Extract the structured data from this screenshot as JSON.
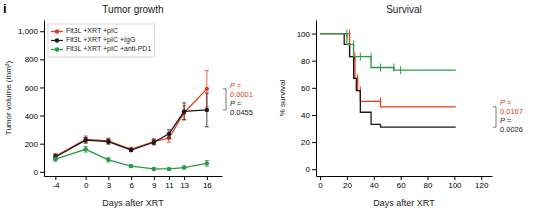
{
  "chart_data": [
    {
      "type": "line",
      "title": "Tumor growth",
      "panel_label": "i",
      "x_label": "Days after XRT",
      "y_label": "Tumor volume (mm³)",
      "x": [
        -4,
        0,
        3,
        6,
        9,
        11,
        13,
        16
      ],
      "series": [
        {
          "name": "Flt3L +XRT +pIC",
          "color": "#e8381a",
          "values": [
            110,
            230,
            220,
            160,
            215,
            240,
            420,
            590
          ],
          "errors": [
            20,
            25,
            20,
            15,
            20,
            30,
            50,
            130
          ]
        },
        {
          "name": "Flt3L +XRT +pIC +IgG",
          "color": "#1a1a1a",
          "values": [
            105,
            225,
            215,
            155,
            210,
            270,
            430,
            440
          ],
          "errors": [
            18,
            20,
            18,
            12,
            18,
            28,
            60,
            120
          ]
        },
        {
          "name": "Flt3L +XRT +pIC +anti-PD1",
          "color": "#2a9a4a",
          "values": [
            90,
            160,
            85,
            40,
            20,
            20,
            30,
            60
          ],
          "errors": [
            15,
            20,
            15,
            10,
            8,
            8,
            10,
            20
          ]
        }
      ],
      "xlim": [
        -5.5,
        18
      ],
      "xticks": [
        -4,
        0,
        3,
        6,
        9,
        11,
        13,
        16
      ],
      "ylim": [
        -30,
        1080
      ],
      "yticks": [
        0,
        200,
        400,
        600,
        800,
        {
          "value": 1000,
          "label": "1,000"
        }
      ],
      "grid": false,
      "legend": "upper left",
      "marker": "circle",
      "annotations": [
        {
          "text": "P =",
          "color": "#e8381a"
        },
        {
          "text": "0.0001",
          "color": "#e8381a"
        },
        {
          "text": "P =",
          "color": "#1a1a1a"
        },
        {
          "text": "0.0455",
          "color": "#1a1a1a"
        }
      ]
    },
    {
      "type": "step",
      "title": "Survival",
      "x_label": "Days after XRT",
      "y_label": "% survival",
      "series": [
        {
          "color": "#e8381a",
          "x": [
            0,
            22,
            22,
            26,
            26,
            28,
            28,
            30,
            30,
            45,
            45,
            101
          ],
          "values": [
            100,
            100,
            83,
            83,
            67,
            67,
            58,
            58,
            50,
            50,
            46,
            46
          ],
          "censor": [
            22,
            26,
            28,
            30,
            45
          ]
        },
        {
          "color": "#1a1a1a",
          "x": [
            0,
            18,
            18,
            22,
            22,
            25,
            25,
            27,
            27,
            30,
            30,
            38,
            38,
            45,
            45,
            101
          ],
          "values": [
            100,
            100,
            92,
            92,
            83,
            83,
            67,
            67,
            58,
            58,
            42,
            42,
            33,
            33,
            31,
            31
          ]
        },
        {
          "color": "#2a9a4a",
          "x": [
            0,
            20,
            20,
            25,
            25,
            30,
            30,
            38,
            38,
            45,
            45,
            55,
            55,
            60,
            60,
            101
          ],
          "values": [
            100,
            100,
            92,
            92,
            83,
            83,
            83,
            83,
            75,
            75,
            75,
            75,
            73,
            73,
            73,
            73
          ],
          "censor": [
            20,
            25,
            30,
            38,
            45,
            55,
            60
          ]
        }
      ],
      "xlim": [
        -3,
        128
      ],
      "xticks": [
        0,
        20,
        40,
        60,
        80,
        100,
        120
      ],
      "ylim": [
        -5,
        110
      ],
      "yticks": [
        0,
        20,
        40,
        60,
        80,
        100
      ],
      "grid": false,
      "annotations": [
        {
          "text": "P =",
          "color": "#e8381a"
        },
        {
          "text": "0.0167",
          "color": "#e8381a"
        },
        {
          "text": "P =",
          "color": "#1a1a1a"
        },
        {
          "text": "0.0026",
          "color": "#1a1a1a"
        }
      ]
    }
  ]
}
